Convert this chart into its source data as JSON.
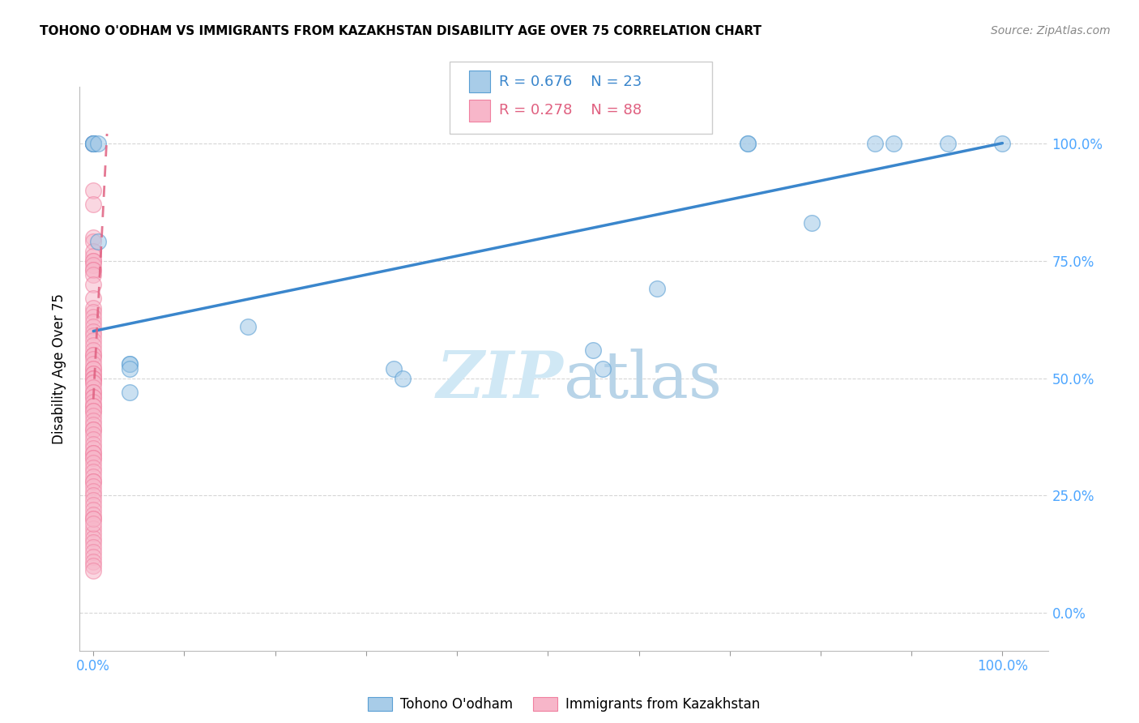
{
  "title": "TOHONO O'ODHAM VS IMMIGRANTS FROM KAZAKHSTAN DISABILITY AGE OVER 75 CORRELATION CHART",
  "source": "Source: ZipAtlas.com",
  "ylabel": "Disability Age Over 75",
  "legend1_label": "Tohono O'odham",
  "legend2_label": "Immigrants from Kazakhstan",
  "blue_R": "R = 0.676",
  "blue_N": "N = 23",
  "pink_R": "R = 0.278",
  "pink_N": "N = 88",
  "blue_color": "#a8cce8",
  "pink_color": "#f7b6c9",
  "blue_edge_color": "#5a9fd4",
  "pink_edge_color": "#f080a0",
  "blue_line_color": "#3a86cc",
  "pink_line_color": "#e06080",
  "tick_color": "#4da6ff",
  "watermark_color": "#d0e8f5",
  "blue_points_x": [
    0.0,
    0.0,
    0.0,
    0.0,
    0.005,
    0.005,
    0.04,
    0.04,
    0.04,
    0.04,
    0.17,
    0.33,
    0.34,
    0.55,
    0.56,
    0.62,
    0.72,
    0.72,
    0.79,
    0.86,
    0.88,
    0.94,
    1.0
  ],
  "blue_points_y": [
    1.0,
    1.0,
    1.0,
    1.0,
    1.0,
    0.79,
    0.53,
    0.53,
    0.52,
    0.47,
    0.61,
    0.52,
    0.5,
    0.56,
    0.52,
    0.69,
    1.0,
    1.0,
    0.83,
    1.0,
    1.0,
    1.0,
    1.0
  ],
  "pink_points_x": [
    0.0,
    0.0,
    0.0,
    0.0,
    0.0,
    0.0,
    0.0,
    0.0,
    0.0,
    0.0,
    0.0,
    0.0,
    0.0,
    0.0,
    0.0,
    0.0,
    0.0,
    0.0,
    0.0,
    0.0,
    0.0,
    0.0,
    0.0,
    0.0,
    0.0,
    0.0,
    0.0,
    0.0,
    0.0,
    0.0,
    0.0,
    0.0,
    0.0,
    0.0,
    0.0,
    0.0,
    0.0,
    0.0,
    0.0,
    0.0,
    0.0,
    0.0,
    0.0,
    0.0,
    0.0,
    0.0,
    0.0,
    0.0,
    0.0,
    0.0,
    0.0,
    0.0,
    0.0,
    0.0,
    0.0,
    0.0,
    0.0,
    0.0,
    0.0,
    0.0,
    0.0,
    0.0,
    0.0,
    0.0,
    0.0,
    0.0,
    0.0,
    0.0,
    0.0,
    0.0,
    0.0,
    0.0,
    0.0,
    0.0,
    0.0,
    0.0,
    0.0,
    0.0,
    0.0,
    0.0,
    0.0,
    0.0,
    0.0,
    0.0,
    0.0,
    0.0,
    0.0,
    0.0
  ],
  "pink_points_y": [
    1.0,
    1.0,
    0.9,
    0.87,
    0.8,
    0.79,
    0.77,
    0.76,
    0.75,
    0.75,
    0.74,
    0.73,
    0.73,
    0.72,
    0.7,
    0.67,
    0.65,
    0.64,
    0.63,
    0.62,
    0.61,
    0.6,
    0.59,
    0.58,
    0.57,
    0.56,
    0.55,
    0.55,
    0.54,
    0.53,
    0.52,
    0.52,
    0.51,
    0.51,
    0.5,
    0.5,
    0.5,
    0.49,
    0.49,
    0.48,
    0.47,
    0.47,
    0.46,
    0.46,
    0.45,
    0.44,
    0.44,
    0.43,
    0.43,
    0.42,
    0.41,
    0.4,
    0.39,
    0.39,
    0.38,
    0.37,
    0.36,
    0.35,
    0.34,
    0.34,
    0.33,
    0.33,
    0.32,
    0.31,
    0.3,
    0.29,
    0.28,
    0.28,
    0.27,
    0.26,
    0.25,
    0.24,
    0.23,
    0.22,
    0.21,
    0.2,
    0.18,
    0.17,
    0.16,
    0.15,
    0.14,
    0.13,
    0.12,
    0.11,
    0.1,
    0.09,
    0.2,
    0.19
  ],
  "blue_line_x": [
    0.0,
    1.0
  ],
  "blue_line_y": [
    0.6,
    1.0
  ],
  "pink_line_x": [
    0.0,
    0.015
  ],
  "pink_line_y": [
    0.455,
    1.02
  ],
  "xlim": [
    -0.015,
    1.05
  ],
  "ylim": [
    -0.08,
    1.12
  ],
  "xticks": [
    0.0,
    0.1,
    0.2,
    0.3,
    0.4,
    0.5,
    0.6,
    0.7,
    0.8,
    0.9,
    1.0
  ],
  "yticks": [
    0.0,
    0.25,
    0.5,
    0.75,
    1.0
  ],
  "xticklabels": [
    "0.0%",
    "",
    "",
    "",
    "",
    "",
    "",
    "",
    "",
    "",
    "100.0%"
  ],
  "yticklabels_right": [
    "0.0%",
    "25.0%",
    "50.0%",
    "75.0%",
    "100.0%"
  ]
}
